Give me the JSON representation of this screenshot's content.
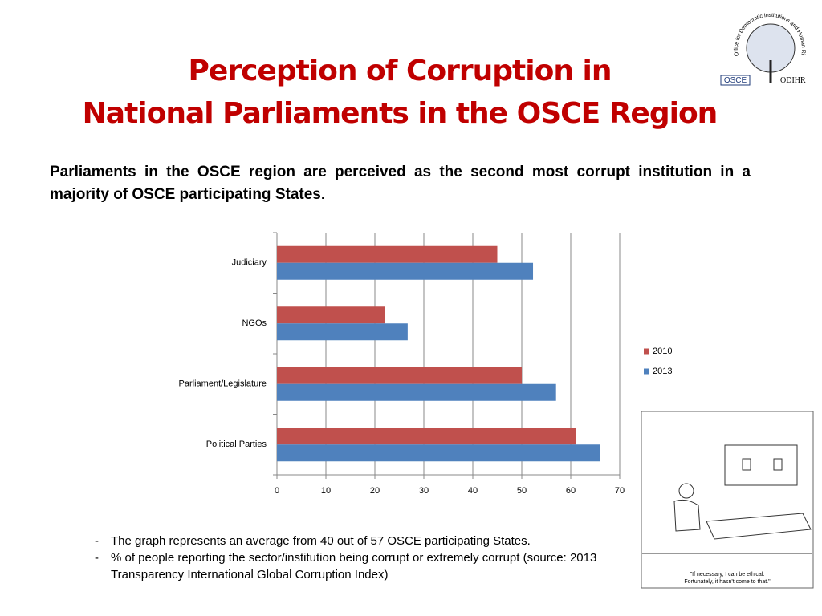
{
  "slide": {
    "title_lines": [
      "Perception of Corruption in",
      "National Parliaments in the OSCE Region"
    ],
    "intro": "Parliaments in the OSCE region are perceived as the second most corrupt institution in a majority of OSCE participating States.",
    "notes": [
      "The graph represents an average from 40 out of 57 OSCE participating States.",
      "% of people reporting the sector/institution being corrupt or extremely corrupt (source: 2013 Transparency International Global Corruption Index)"
    ],
    "logo": {
      "arc": "Office for Democratic Institutions and Human Rights",
      "left": "OSCE",
      "right": "ODIHR"
    },
    "cartoon_caption": [
      "\"If necessary, I can be ethical.",
      "Fortunately, it hasn't come to that.\""
    ]
  },
  "chart_data": {
    "type": "hbar",
    "categories": [
      "Judiciary",
      "NGOs",
      "Parliament/Legislature",
      "Political Parties"
    ],
    "series": [
      {
        "name": "2010",
        "color": "#c0504d",
        "values": [
          45,
          22,
          50,
          61
        ]
      },
      {
        "name": "2013",
        "color": "#4f81bd",
        "values": [
          52.3,
          26.7,
          57,
          66
        ]
      }
    ],
    "xlim": [
      0,
      70
    ],
    "xticks": [
      0,
      10,
      20,
      30,
      40,
      50,
      60,
      70
    ],
    "grid": true,
    "legend": "right"
  }
}
